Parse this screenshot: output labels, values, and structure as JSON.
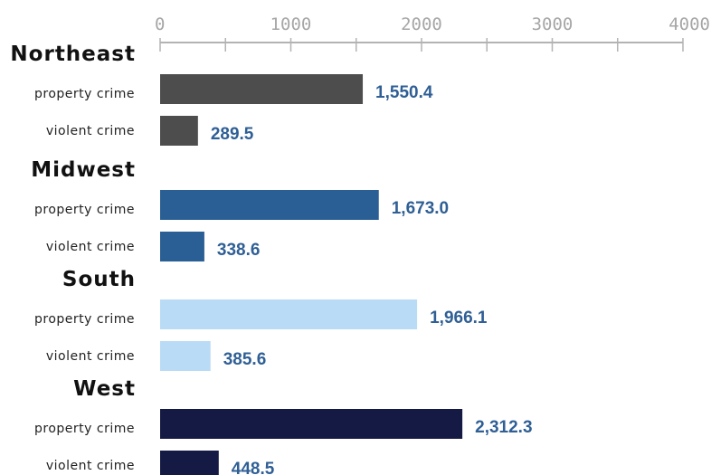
{
  "chart_data": {
    "type": "bar",
    "orientation": "horizontal",
    "title": "",
    "xlabel": "",
    "ylabel": "",
    "xlim": [
      0,
      4000
    ],
    "ticks": [
      0,
      1000,
      2000,
      3000,
      4000
    ],
    "tick_labels": [
      "0",
      "1000",
      "2000",
      "3000",
      "4000"
    ],
    "axis_position": "top",
    "grid": false,
    "value_label_color": "#2f5f95",
    "groups": [
      {
        "name": "Northeast",
        "color": "#4d4d4d",
        "bars": [
          {
            "label": "property crime",
            "value": 1550.4,
            "display": "1,550.4"
          },
          {
            "label": "violent crime",
            "value": 289.5,
            "display": "289.5"
          }
        ]
      },
      {
        "name": "Midwest",
        "color": "#2a5f95",
        "bars": [
          {
            "label": "property crime",
            "value": 1673.0,
            "display": "1,673.0"
          },
          {
            "label": "violent crime",
            "value": 338.6,
            "display": "338.6"
          }
        ]
      },
      {
        "name": "South",
        "color": "#b9dbf6",
        "bars": [
          {
            "label": "property crime",
            "value": 1966.1,
            "display": "1,966.1"
          },
          {
            "label": "violent crime",
            "value": 385.6,
            "display": "385.6"
          }
        ]
      },
      {
        "name": "West",
        "color": "#141a44",
        "bars": [
          {
            "label": "property crime",
            "value": 2312.3,
            "display": "2,312.3"
          },
          {
            "label": "violent crime",
            "value": 448.5,
            "display": "448.5"
          }
        ]
      }
    ]
  }
}
